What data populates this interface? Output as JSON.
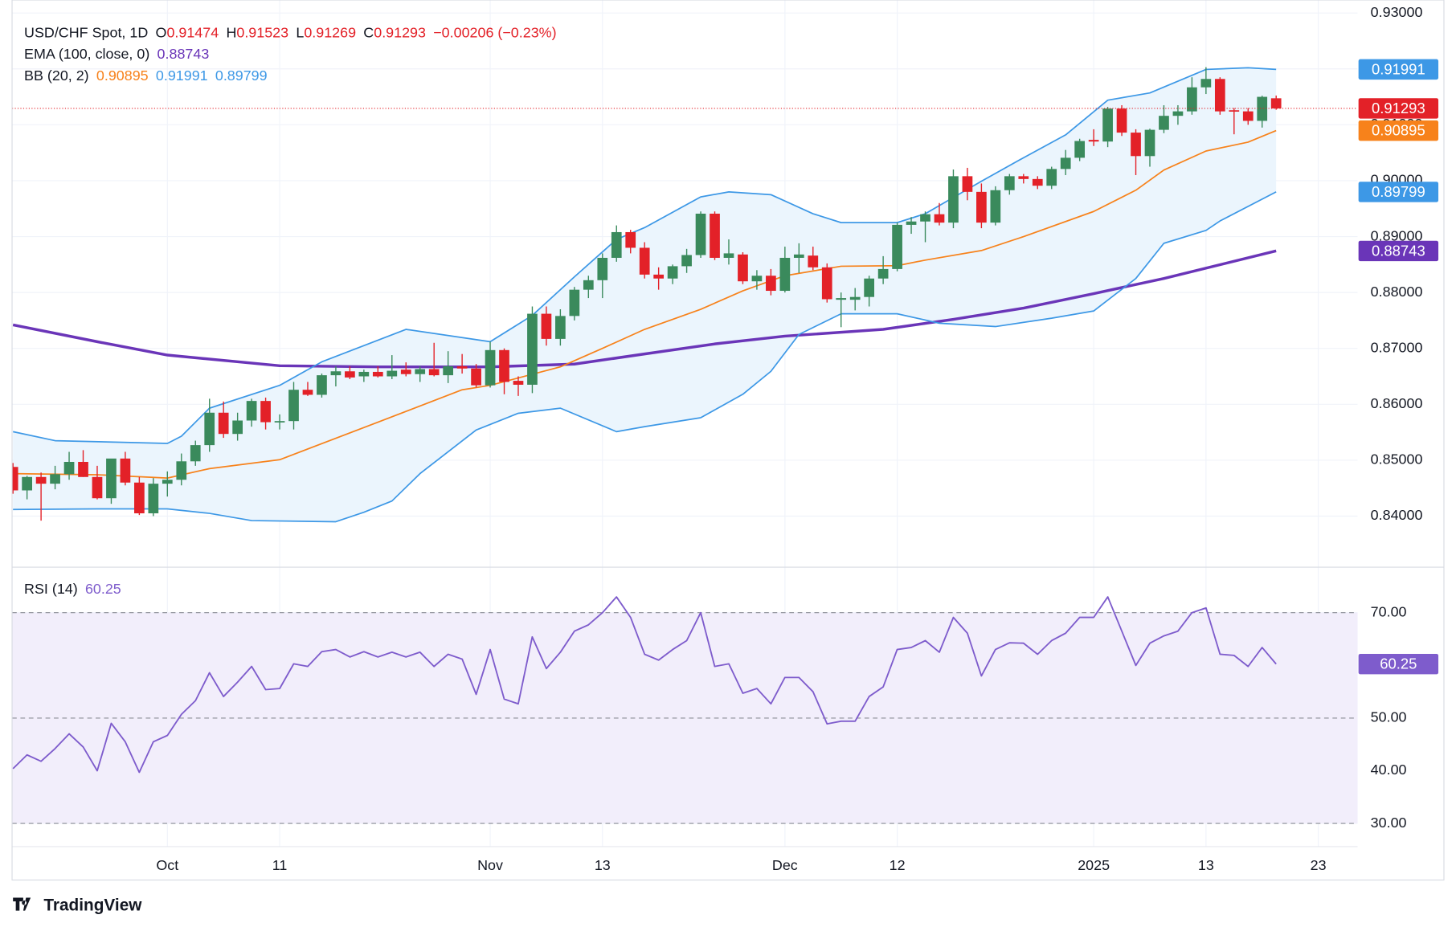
{
  "brand": "TradingView",
  "chart_data": [
    {
      "type": "candlestick",
      "title": "USD/CHF Spot, 1D",
      "ohlc_header": [
        {
          "label": "O",
          "value": "0.91474"
        },
        {
          "label": "H",
          "value": "0.91523"
        },
        {
          "label": "L",
          "value": "0.91269"
        },
        {
          "label": "C",
          "value": "0.91293"
        }
      ],
      "change": "−0.00206 (−0.23%)",
      "up_color": "#3a8a5c",
      "down_color": "#e32128",
      "header_value_color": "#e32128",
      "open": [
        0.8488,
        0.8446,
        0.847,
        0.8458,
        0.8475,
        0.8497,
        0.847,
        0.8432,
        0.8503,
        0.846,
        0.8405,
        0.8458,
        0.8465,
        0.8498,
        0.8527,
        0.8585,
        0.8547,
        0.8571,
        0.8606,
        0.8568,
        0.857,
        0.8626,
        0.8617,
        0.8652,
        0.8659,
        0.865,
        0.8658,
        0.865,
        0.8662,
        0.8654,
        0.8663,
        0.8652,
        0.8668,
        0.8664,
        0.8634,
        0.8697,
        0.8642,
        0.8635,
        0.8762,
        0.8717,
        0.8758,
        0.8805,
        0.8822,
        0.8862,
        0.8908,
        0.888,
        0.8832,
        0.8825,
        0.8847,
        0.8867,
        0.8941,
        0.8862,
        0.8868,
        0.882,
        0.883,
        0.8803,
        0.8862,
        0.8866,
        0.8845,
        0.8787,
        0.8787,
        0.8792,
        0.8825,
        0.8842,
        0.8921,
        0.8927,
        0.894,
        0.8925,
        0.9008,
        0.898,
        0.8925,
        0.8983,
        0.9008,
        0.9003,
        0.8991,
        0.9021,
        0.9041,
        0.9073,
        0.907,
        0.9129,
        0.9086,
        0.9044,
        0.9091,
        0.9116,
        0.9124,
        0.9167,
        0.9182,
        0.9126,
        0.9124,
        0.9107,
        0.91474
      ],
      "high": [
        0.8495,
        0.8472,
        0.8478,
        0.849,
        0.8515,
        0.8518,
        0.849,
        0.8502,
        0.8515,
        0.847,
        0.8468,
        0.848,
        0.8512,
        0.8535,
        0.861,
        0.8605,
        0.8585,
        0.861,
        0.8612,
        0.8582,
        0.864,
        0.864,
        0.8655,
        0.8668,
        0.8668,
        0.8662,
        0.8668,
        0.8688,
        0.8675,
        0.8668,
        0.871,
        0.8695,
        0.869,
        0.8672,
        0.8712,
        0.87,
        0.865,
        0.8775,
        0.8775,
        0.877,
        0.881,
        0.883,
        0.887,
        0.892,
        0.8912,
        0.889,
        0.8845,
        0.885,
        0.8878,
        0.8945,
        0.8945,
        0.8895,
        0.8872,
        0.884,
        0.8842,
        0.8882,
        0.8888,
        0.8882,
        0.8852,
        0.88,
        0.8808,
        0.883,
        0.8865,
        0.8925,
        0.8935,
        0.8945,
        0.896,
        0.902,
        0.9023,
        0.8995,
        0.899,
        0.9012,
        0.9012,
        0.9008,
        0.9025,
        0.9055,
        0.9075,
        0.9092,
        0.9132,
        0.9135,
        0.9092,
        0.9093,
        0.9135,
        0.9135,
        0.9185,
        0.9203,
        0.9185,
        0.913,
        0.913,
        0.9152,
        0.91523
      ],
      "low": [
        0.844,
        0.843,
        0.8392,
        0.8448,
        0.8465,
        0.847,
        0.843,
        0.8422,
        0.8455,
        0.8402,
        0.84,
        0.8435,
        0.8455,
        0.849,
        0.8515,
        0.854,
        0.8535,
        0.856,
        0.8555,
        0.8555,
        0.8555,
        0.8615,
        0.8612,
        0.8632,
        0.8645,
        0.864,
        0.8648,
        0.8645,
        0.865,
        0.864,
        0.865,
        0.8638,
        0.8655,
        0.863,
        0.863,
        0.8618,
        0.8615,
        0.862,
        0.8705,
        0.8705,
        0.875,
        0.879,
        0.879,
        0.8855,
        0.887,
        0.8825,
        0.8805,
        0.8815,
        0.8835,
        0.8862,
        0.8858,
        0.885,
        0.8815,
        0.8805,
        0.8795,
        0.88,
        0.8835,
        0.884,
        0.8782,
        0.8738,
        0.8768,
        0.8775,
        0.8815,
        0.8838,
        0.8905,
        0.889,
        0.892,
        0.8915,
        0.8965,
        0.8915,
        0.892,
        0.8975,
        0.8995,
        0.8985,
        0.8985,
        0.901,
        0.9035,
        0.9062,
        0.906,
        0.908,
        0.901,
        0.9025,
        0.9085,
        0.91,
        0.9118,
        0.9155,
        0.9118,
        0.9083,
        0.91,
        0.9095,
        0.91269
      ],
      "close": [
        0.8446,
        0.847,
        0.8458,
        0.8475,
        0.8497,
        0.847,
        0.8432,
        0.8503,
        0.846,
        0.8405,
        0.8458,
        0.8465,
        0.8498,
        0.8527,
        0.8585,
        0.8547,
        0.8571,
        0.8606,
        0.8568,
        0.857,
        0.8626,
        0.8617,
        0.8652,
        0.8659,
        0.8648,
        0.8658,
        0.865,
        0.866,
        0.8654,
        0.8663,
        0.8652,
        0.8668,
        0.8664,
        0.8634,
        0.8697,
        0.864,
        0.8635,
        0.8762,
        0.8717,
        0.8758,
        0.8805,
        0.8822,
        0.8862,
        0.8908,
        0.888,
        0.8832,
        0.8825,
        0.8847,
        0.8867,
        0.8941,
        0.8862,
        0.887,
        0.882,
        0.883,
        0.8803,
        0.8862,
        0.8868,
        0.8845,
        0.8788,
        0.879,
        0.8792,
        0.8825,
        0.8842,
        0.8921,
        0.8927,
        0.894,
        0.8925,
        0.9008,
        0.898,
        0.8925,
        0.8983,
        0.9008,
        0.9003,
        0.8991,
        0.9021,
        0.9041,
        0.9071,
        0.907,
        0.9129,
        0.9086,
        0.9044,
        0.9091,
        0.9116,
        0.9124,
        0.9167,
        0.9182,
        0.9124,
        0.9124,
        0.9107,
        0.915,
        0.91293
      ],
      "indicators": [
        {
          "name": "EMA (100, close, 0)",
          "lines": [
            {
              "color": "#6a35b8",
              "value_label": "0.88743",
              "x": [
                0,
                6,
                11,
                19,
                26,
                34,
                40,
                45,
                50,
                55,
                62,
                67,
                72,
                77,
                82,
                90
              ],
              "values": [
                0.8742,
                0.8712,
                0.8688,
                0.8669,
                0.8667,
                0.8667,
                0.8672,
                0.869,
                0.8708,
                0.8722,
                0.8734,
                0.8752,
                0.8772,
                0.8798,
                0.8825,
                0.88743
              ]
            }
          ]
        },
        {
          "name": "BB (20, 2)",
          "fill": "#ebf5fd",
          "lines": [
            {
              "color": "#f7821b",
              "value_label": "0.90895",
              "x": [
                0,
                6,
                11,
                14,
                19,
                26,
                32,
                34,
                39,
                42,
                45,
                49,
                52,
                55,
                59,
                63,
                65,
                69,
                72,
                77,
                80,
                82,
                85,
                88,
                90
              ],
              "values": [
                0.8476,
                0.8474,
                0.8468,
                0.8485,
                0.8501,
                0.8568,
                0.8626,
                0.8634,
                0.8667,
                0.87,
                0.8734,
                0.877,
                0.8803,
                0.883,
                0.8847,
                0.8848,
                0.8858,
                0.8875,
                0.89,
                0.8945,
                0.8983,
                0.9019,
                0.9053,
                0.9069,
                0.90895
              ]
            },
            {
              "color": "#3d98e6",
              "value_label": "0.91991",
              "x": [
                0,
                3,
                11,
                12,
                14,
                19,
                22,
                28,
                34,
                37,
                40,
                43,
                45,
                49,
                51,
                54,
                57,
                59,
                63,
                65,
                69,
                72,
                75,
                78,
                81,
                85,
                88,
                90
              ],
              "values": [
                0.8551,
                0.8535,
                0.853,
                0.8543,
                0.8593,
                0.8634,
                0.8676,
                0.8734,
                0.8712,
                0.8759,
                0.8828,
                0.8895,
                0.8916,
                0.8971,
                0.898,
                0.8975,
                0.8941,
                0.8925,
                0.8925,
                0.8941,
                0.8999,
                0.9041,
                0.9082,
                0.9144,
                0.9157,
                0.9199,
                0.9202,
                0.91991
              ]
            },
            {
              "color": "#3d98e6",
              "value_label": "0.89799",
              "x": [
                0,
                6,
                11,
                14,
                17,
                23,
                25,
                27,
                29,
                33,
                36,
                39,
                43,
                45,
                49,
                52,
                54,
                56,
                59,
                63,
                66,
                70,
                74,
                77,
                80,
                82,
                85,
                86,
                90
              ],
              "values": [
                0.8412,
                0.8413,
                0.8413,
                0.8405,
                0.8392,
                0.839,
                0.8407,
                0.8427,
                0.8476,
                0.8554,
                0.8584,
                0.8593,
                0.8551,
                0.856,
                0.8576,
                0.8618,
                0.8659,
                0.8725,
                0.8762,
                0.8762,
                0.8745,
                0.8739,
                0.8754,
                0.8767,
                0.8825,
                0.8888,
                0.8911,
                0.8928,
                0.89799
              ]
            }
          ]
        }
      ],
      "xlim": [
        0,
        95.8
      ],
      "xticks": [
        {
          "value": 11,
          "label": "Oct"
        },
        {
          "value": 19,
          "label": "11"
        },
        {
          "value": 34,
          "label": "Nov"
        },
        {
          "value": 42,
          "label": "13"
        },
        {
          "value": 55,
          "label": "Dec"
        },
        {
          "value": 63,
          "label": "12"
        },
        {
          "value": 77,
          "label": "2025"
        },
        {
          "value": 85,
          "label": "13"
        },
        {
          "value": 93,
          "label": "23"
        }
      ],
      "ylim": [
        0.83103,
        0.93232
      ],
      "yticks": [
        {
          "value": 0.84,
          "label": "0.84000"
        },
        {
          "value": 0.85,
          "label": "0.85000"
        },
        {
          "value": 0.86,
          "label": "0.86000"
        },
        {
          "value": 0.87,
          "label": "0.87000"
        },
        {
          "value": 0.88,
          "label": "0.88000"
        },
        {
          "value": 0.89,
          "label": "0.89000"
        },
        {
          "value": 0.9,
          "label": "0.90000"
        },
        {
          "value": 0.91,
          "label": "0.91000"
        },
        {
          "value": 0.92,
          "label": "0.92000"
        },
        {
          "value": 0.93,
          "label": "0.93000"
        }
      ],
      "grid": true
    },
    {
      "type": "line",
      "name": "RSI (14)",
      "value_label": "60.25",
      "color": "#7e5ccc",
      "band_color": "#f2eefb",
      "values": [
        40.4,
        43,
        41.8,
        44.2,
        47,
        44.5,
        40,
        49,
        45.5,
        39.7,
        45.5,
        46.7,
        50.7,
        53.3,
        58.6,
        54.1,
        56.8,
        59.8,
        55.4,
        55.6,
        60.3,
        59.8,
        62.6,
        63,
        61.6,
        62.6,
        61.6,
        62.5,
        61.6,
        62.5,
        59.8,
        62.1,
        61.2,
        54.5,
        63,
        53.6,
        52.7,
        65.4,
        59.4,
        62.5,
        66.5,
        67.7,
        70,
        73,
        69.1,
        62.1,
        61,
        63,
        64.7,
        70,
        59.8,
        60.3,
        54.7,
        55.6,
        52.7,
        57.7,
        57.7,
        55,
        48.9,
        49.4,
        49.4,
        54.1,
        55.9,
        63,
        63.4,
        64.7,
        62.5,
        69.1,
        66.1,
        58,
        63,
        64.3,
        64.2,
        62.1,
        64.7,
        66.1,
        69.1,
        69.1,
        73,
        66.5,
        60,
        64.2,
        65.6,
        66.5,
        70,
        70.9,
        62.1,
        61.9,
        59.8,
        63.4,
        60.25
      ],
      "levels": [
        70,
        50,
        30
      ],
      "ylim": [
        25.6,
        78.46
      ],
      "yticks": [
        {
          "value": 30,
          "label": "30.00"
        },
        {
          "value": 40,
          "label": "40.00"
        },
        {
          "value": 50,
          "label": "50.00"
        },
        {
          "value": 70,
          "label": "70.00"
        }
      ],
      "grid": true
    }
  ]
}
